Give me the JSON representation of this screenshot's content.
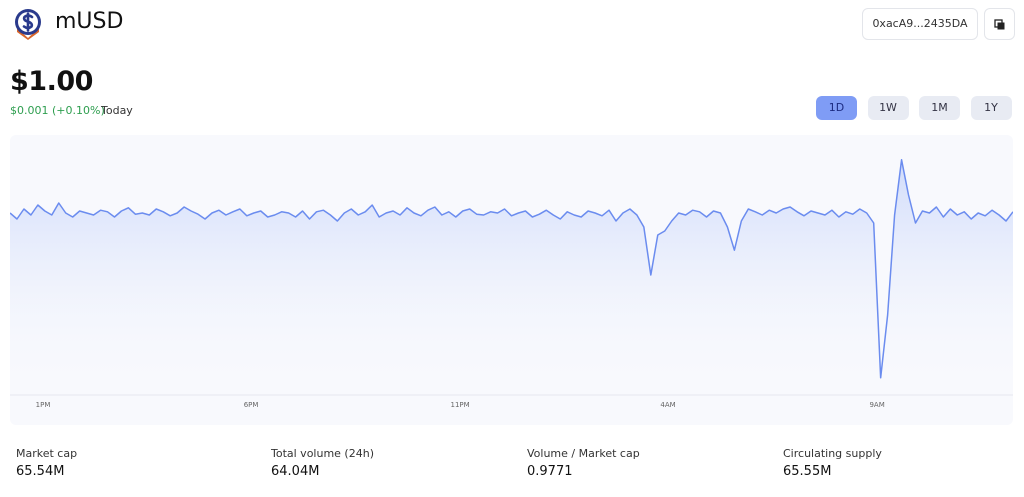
{
  "header": {
    "title": "mUSD",
    "address": "0xacA9...2435DA"
  },
  "price": "$1.00",
  "change": "$0.001 (+0.10%)",
  "period": "Today",
  "ranges": [
    "1D",
    "1W",
    "1M",
    "1Y"
  ],
  "selected_range": "1D",
  "chart_data": {
    "type": "line",
    "color": "#6b8cef",
    "values": [
      0.99955,
      0.9994,
      0.99965,
      0.9995,
      0.99975,
      0.9996,
      0.9995,
      0.9998,
      0.99955,
      0.99945,
      0.9996,
      0.99955,
      0.9995,
      0.99962,
      0.99958,
      0.99945,
      0.9996,
      0.99968,
      0.99952,
      0.99955,
      0.9995,
      0.99965,
      0.99958,
      0.99948,
      0.99955,
      0.9997,
      0.9996,
      0.99952,
      0.9994,
      0.99955,
      0.99962,
      0.9995,
      0.99958,
      0.99965,
      0.99948,
      0.99955,
      0.9996,
      0.99945,
      0.9995,
      0.99958,
      0.99955,
      0.99945,
      0.9996,
      0.9994,
      0.99958,
      0.99962,
      0.9995,
      0.99935,
      0.99955,
      0.99965,
      0.9995,
      0.99958,
      0.99975,
      0.99945,
      0.99955,
      0.9996,
      0.9995,
      0.99968,
      0.99955,
      0.99948,
      0.99962,
      0.9997,
      0.9995,
      0.99958,
      0.99945,
      0.9996,
      0.99965,
      0.99952,
      0.9995,
      0.99958,
      0.99955,
      0.99965,
      0.99948,
      0.99955,
      0.9996,
      0.99945,
      0.99952,
      0.99962,
      0.9995,
      0.9994,
      0.99958,
      0.9995,
      0.99945,
      0.9996,
      0.99955,
      0.99948,
      0.99962,
      0.99935,
      0.99955,
      0.99965,
      0.9995,
      0.9992,
      0.998,
      0.999,
      0.9991,
      0.99935,
      0.99955,
      0.9995,
      0.99962,
      0.99958,
      0.99945,
      0.9996,
      0.99955,
      0.9992,
      0.99862,
      0.99935,
      0.99965,
      0.99958,
      0.9995,
      0.99962,
      0.99955,
      0.99965,
      0.9997,
      0.99958,
      0.99948,
      0.9996,
      0.99955,
      0.9995,
      0.99962,
      0.99945,
      0.99958,
      0.99952,
      0.99965,
      0.99955,
      0.9993,
      0.99543,
      0.997,
      0.9995,
      1.00088,
      1.0,
      0.9993,
      0.9996,
      0.99955,
      0.9997,
      0.99945,
      0.99965,
      0.9995,
      0.99958,
      0.9994,
      0.99955,
      0.99948,
      0.99962,
      0.9995,
      0.99935,
      0.99958
    ],
    "xlim": [
      0,
      144
    ],
    "xticks": [
      {
        "value": 4.74,
        "label": "1PM"
      },
      {
        "value": 34.61,
        "label": "6PM"
      },
      {
        "value": 64.62,
        "label": "11PM"
      },
      {
        "value": 94.48,
        "label": "4AM"
      },
      {
        "value": 124.49,
        "label": "9AM"
      }
    ],
    "ylim": [
      0.995,
      1.0015
    ]
  },
  "stats": [
    {
      "label": "Market cap",
      "value": "65.54M"
    },
    {
      "label": "Total volume (24h)",
      "value": "64.04M"
    },
    {
      "label": "Volume / Market cap",
      "value": "0.9771"
    },
    {
      "label": "Circulating supply",
      "value": "65.55M"
    }
  ]
}
